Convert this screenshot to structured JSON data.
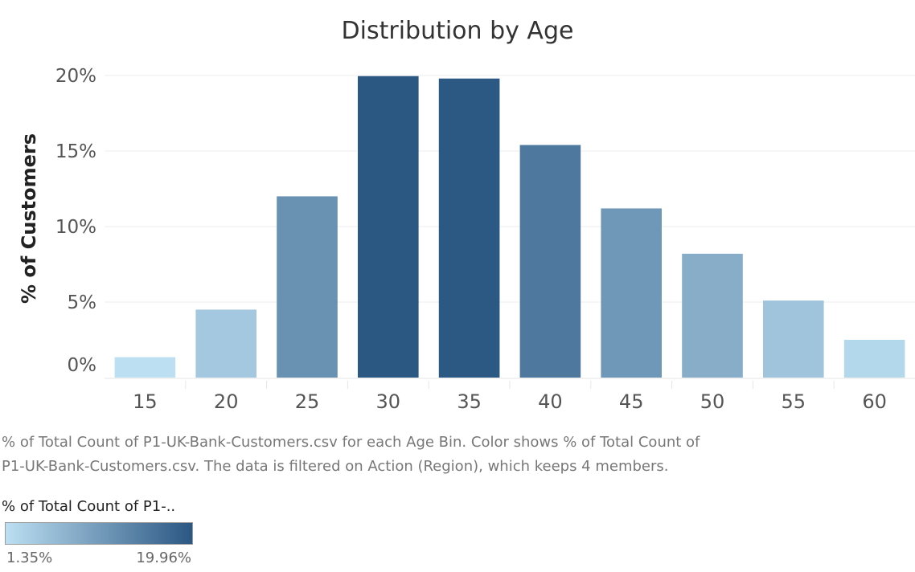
{
  "chart_data": {
    "type": "bar",
    "title": "Distribution by Age",
    "xlabel": "",
    "ylabel": "% of Customers",
    "categories": [
      "15",
      "20",
      "25",
      "30",
      "35",
      "40",
      "45",
      "50",
      "55",
      "60"
    ],
    "series": [
      {
        "values": [
          1.35,
          4.5,
          12.0,
          19.96,
          19.8,
          15.4,
          11.2,
          8.2,
          5.1,
          2.5
        ]
      }
    ],
    "y_ticks": [
      "0%",
      "5%",
      "10%",
      "15%",
      "20%"
    ],
    "ylim": [
      0,
      20
    ],
    "grid": "horizontal",
    "color_scale": {
      "min_color": "#bcdff2",
      "max_color": "#2b5783",
      "min_value": 1.35,
      "max_value": 19.96
    }
  },
  "caption": {
    "line1": "% of Total Count of P1-UK-Bank-Customers.csv for each Age Bin.  Color shows % of Total Count of",
    "line2": "P1-UK-Bank-Customers.csv. The data is filtered on Action (Region), which keeps 4 members."
  },
  "legend": {
    "title": "% of Total Count of P1-..",
    "min_label": "1.35%",
    "max_label": "19.96%"
  }
}
